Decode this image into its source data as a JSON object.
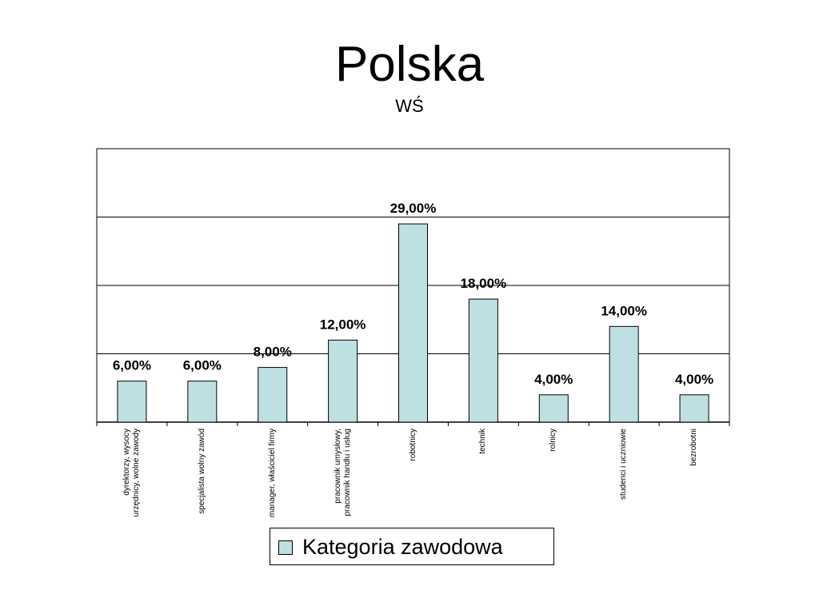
{
  "chart_data": {
    "type": "bar",
    "title": "Polska",
    "subtitle": "WŚ",
    "categories": [
      "dyrektorzy, wysocy urzędnicy, wolne zawody",
      "specjalista wolny zawód",
      "manager, właściciel firmy",
      "pracownik umysłowy, pracownik handlu i usług",
      "robotnicy",
      "technik",
      "rolnicy",
      "studenci i uczniowie",
      "bezrobotni"
    ],
    "category_lines": [
      [
        "dyrektorzy, wysocy",
        "urzędnicy, wolne zawody"
      ],
      [
        "specjalista wolny zawód"
      ],
      [
        "manager, właściciel firmy"
      ],
      [
        "pracownik umysłowy,",
        "pracownik handlu i usług"
      ],
      [
        "robotnicy"
      ],
      [
        "technik"
      ],
      [
        "rolnicy"
      ],
      [
        "studenci i uczniowie"
      ],
      [
        "bezrobotni"
      ]
    ],
    "series": [
      {
        "name": "Kategoria zawodowa",
        "values": [
          6,
          6,
          8,
          12,
          29,
          18,
          4,
          14,
          4
        ],
        "labels": [
          "6,00%",
          "6,00%",
          "8,00%",
          "12,00%",
          "29,00%",
          "18,00%",
          "4,00%",
          "14,00%",
          "4,00%"
        ]
      }
    ],
    "ylim": [
      0,
      40
    ],
    "grid": true,
    "legend_position": "bottom",
    "bar_color": "#bfe0e3"
  }
}
